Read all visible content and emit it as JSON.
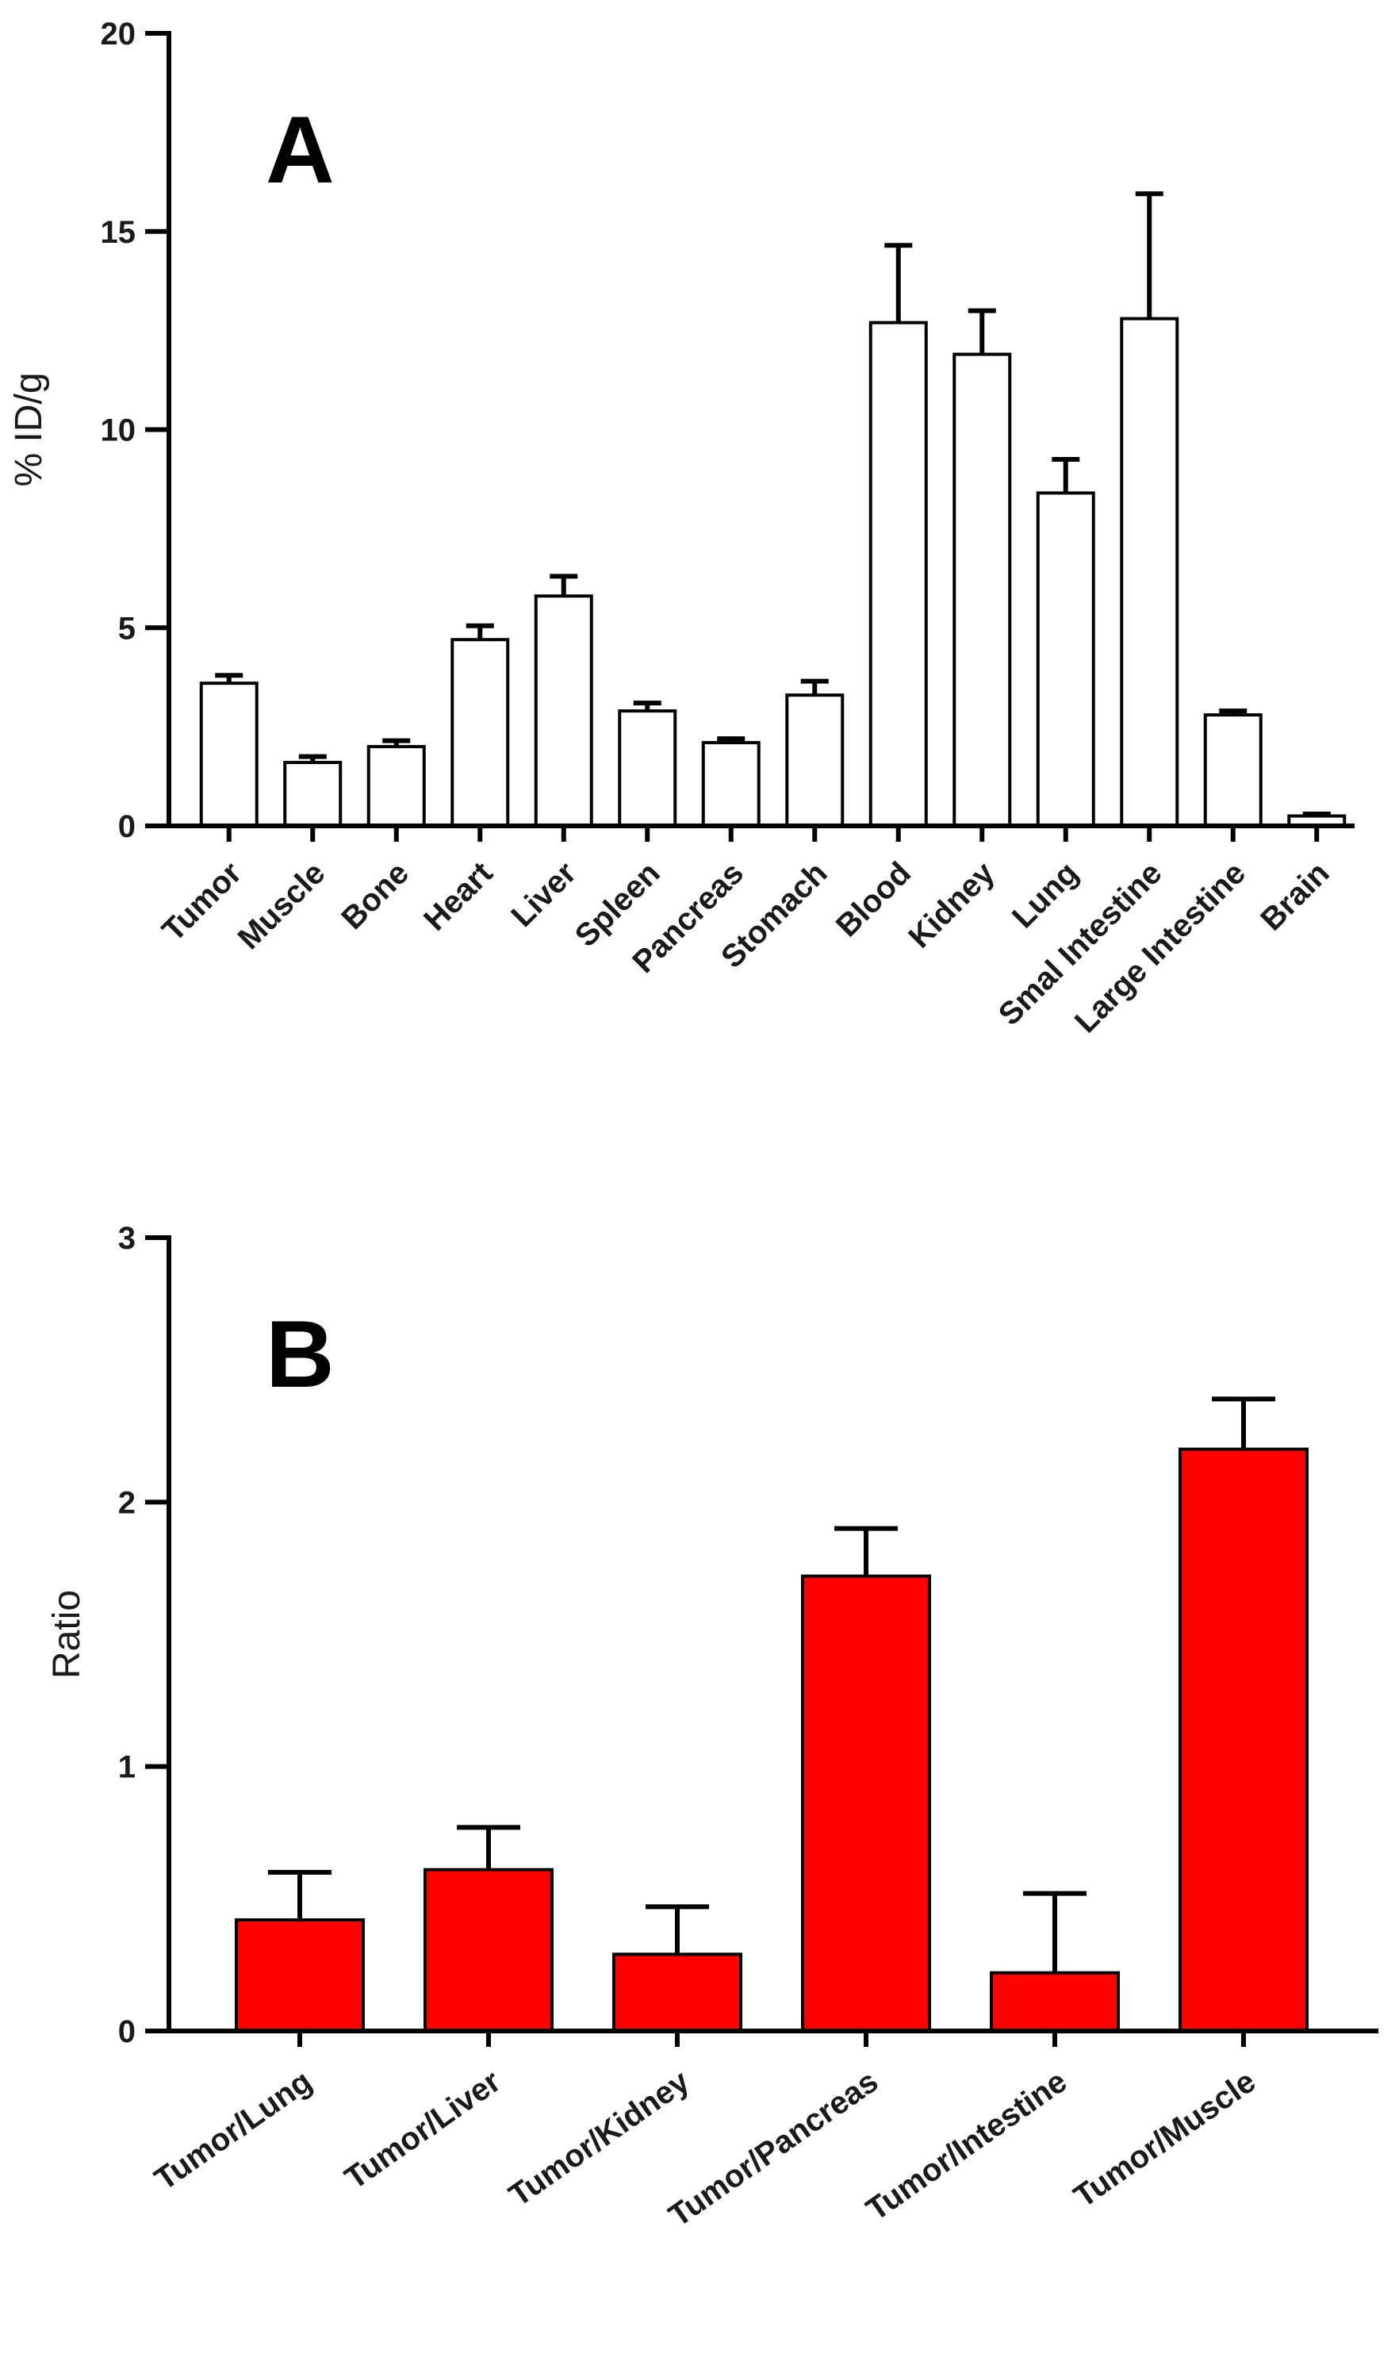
{
  "chart_data": [
    {
      "id": "A",
      "type": "bar",
      "panel_label": "A",
      "title": "",
      "xlabel": "",
      "ylabel": "% ID/g",
      "ylim": [
        0,
        20
      ],
      "yticks": [
        "0",
        "5",
        "10",
        "15",
        "20"
      ],
      "grid": false,
      "bar_color": "#ffffff",
      "categories": [
        "Tumor",
        "Muscle",
        "Bone",
        "Heart",
        "Liver",
        "Spleen",
        "Pancreas",
        "Stomach",
        "Blood",
        "Kidney",
        "Lung",
        "Smal Intestine",
        "Large Intestine",
        "Brain"
      ],
      "values": [
        3.6,
        1.6,
        2.0,
        4.7,
        5.8,
        2.9,
        2.1,
        3.3,
        12.7,
        11.9,
        8.4,
        12.8,
        2.8,
        0.25
      ],
      "errors": [
        0.2,
        0.15,
        0.15,
        0.35,
        0.5,
        0.2,
        0.1,
        0.35,
        1.95,
        1.1,
        0.85,
        3.15,
        0.1,
        0.05
      ]
    },
    {
      "id": "B",
      "type": "bar",
      "panel_label": "B",
      "title": "",
      "xlabel": "",
      "ylabel": "Ratio",
      "ylim": [
        0,
        3
      ],
      "yticks": [
        "0",
        "1",
        "2",
        "3"
      ],
      "grid": false,
      "bar_color": "#ff0000",
      "categories": [
        "Tumor/Lung",
        "Tumor/Liver",
        "Tumor/Kidney",
        "Tumor/Pancreas",
        "Tumor/Intestine",
        "Tumor/Muscle"
      ],
      "values": [
        0.42,
        0.61,
        0.29,
        1.72,
        0.22,
        2.2
      ],
      "errors": [
        0.18,
        0.16,
        0.18,
        0.18,
        0.3,
        0.19
      ]
    }
  ]
}
